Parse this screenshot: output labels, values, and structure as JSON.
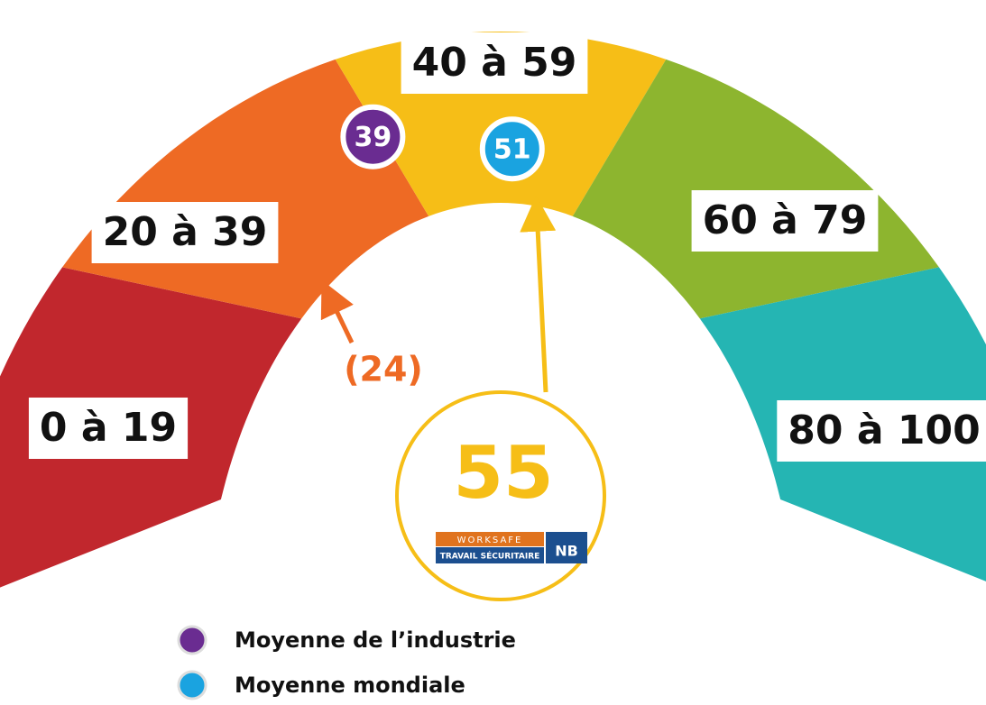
{
  "segments": [
    {
      "label": "0 à 19",
      "color": "#c1272d"
    },
    {
      "label": "20 à 39",
      "color": "#ee6a24"
    },
    {
      "label": "40 à 59",
      "color": "#f6be17"
    },
    {
      "label": "60 à 79",
      "color": "#8db52f"
    },
    {
      "label": "80 à 100",
      "color": "#25b5b3"
    }
  ],
  "scale_max": 100,
  "score": {
    "value": 55,
    "color": "#f6be17"
  },
  "previous": {
    "value": 24,
    "label": "(24)",
    "color": "#ee6a24"
  },
  "industry": {
    "value": 39,
    "name": "Moyenne de l’industrie",
    "color": "#6a2c91"
  },
  "world": {
    "value": 51,
    "name": "Moyenne mondiale",
    "color": "#1aa3e0"
  },
  "logo": {
    "line1": "WORKSAFE",
    "line2": "TRAVAIL SÉCURITAIRE",
    "badge": "NB"
  }
}
